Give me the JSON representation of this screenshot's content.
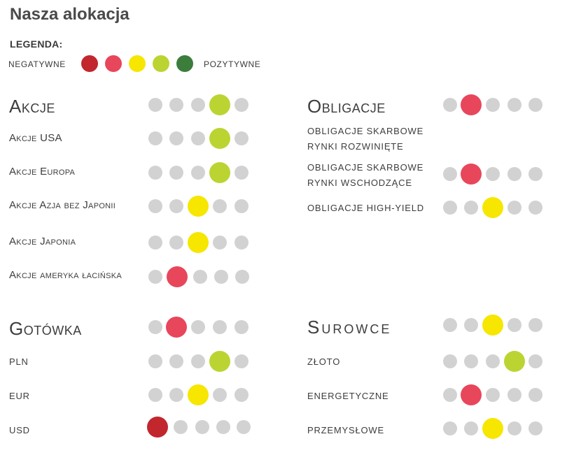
{
  "title": "Nasza alokacja",
  "legend": {
    "label": "LEGENDA:",
    "negative": "NEGATYWNE",
    "positive": "POZYTYWNE",
    "levels": [
      {
        "name": "very-negative",
        "color": "#c1272d"
      },
      {
        "name": "negative",
        "color": "#e8465b"
      },
      {
        "name": "neutral",
        "color": "#f6e600"
      },
      {
        "name": "positive",
        "color": "#bcd432"
      },
      {
        "name": "very-positive",
        "color": "#3c7d3c"
      }
    ],
    "inactive_color": "#d2d2d2"
  },
  "sections": {
    "akcje": {
      "title": "Akcje",
      "level": 4,
      "rows": [
        {
          "label": "Akcje USA",
          "level": 4
        },
        {
          "label": "Akcje Europa",
          "level": 4
        },
        {
          "label": "Akcje Azja bez Japonii",
          "level": 3
        },
        {
          "label": "Akcje Japonia",
          "level": 3
        },
        {
          "label": "Akcje ameryka łacińska",
          "level": 2
        }
      ]
    },
    "obligacje": {
      "title": "Obligacje",
      "level": 2,
      "rows": [
        {
          "label": "OBLIGACJE SKARBOWE\nRYNKI ROZWINIĘTE",
          "level": null
        },
        {
          "label": "OBLIGACJE SKARBOWE\nRYNKI WSCHODZĄCE",
          "level": 2
        },
        {
          "label": "OBLIGACJE HIGH-YIELD",
          "level": 3
        }
      ]
    },
    "gotowka": {
      "title": "Gotówka",
      "level": 2,
      "rows": [
        {
          "label": "PLN",
          "level": 4
        },
        {
          "label": "EUR",
          "level": 3
        },
        {
          "label": "USD",
          "level": 1
        }
      ]
    },
    "surowce": {
      "title": "Surowce",
      "level": 3,
      "rows": [
        {
          "label": "ZŁOTO",
          "level": 4
        },
        {
          "label": "ENERGETYCZNE",
          "level": 2
        },
        {
          "label": "PRZEMYSŁOWE",
          "level": 3
        }
      ]
    }
  }
}
